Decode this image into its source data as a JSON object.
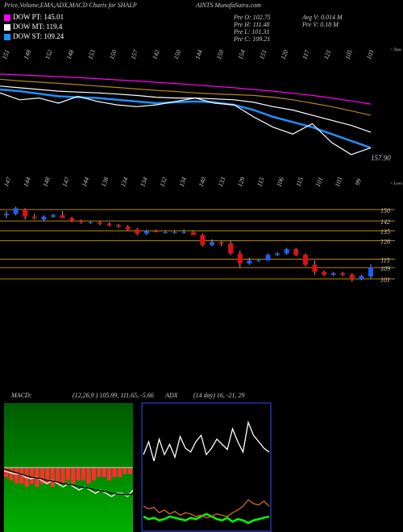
{
  "chart_data": [
    {
      "type": "line",
      "title": "Price,Volume,EMA,ADX,MACD Charts for SHALP",
      "subtitle": "AINTS MunafaSutra.com",
      "stats": [
        "Pre  O: 102.75",
        "Pre  H: 111.48",
        "Pre  L: 101.31",
        "Pre  C: 109.21",
        "Avg V: 0.014  M",
        "Pre  V: 0.18 M"
      ],
      "top_labels": [
        "151",
        "148",
        "152",
        "148",
        "153",
        "150",
        "157",
        "142",
        "150",
        "144",
        "150",
        "154",
        "151",
        "120",
        "117",
        "121",
        "105",
        "103"
      ],
      "top_note": "< Tops",
      "annotation": "157.90",
      "ylim": [
        90,
        170
      ],
      "series": [
        {
          "color": "#ff00ff",
          "name": "DOW PT: 145.01",
          "values": [
            155,
            154.5,
            154,
            153.5,
            153,
            152.3,
            151.6,
            151,
            150.2,
            149.5,
            148.7,
            147.8,
            147,
            146,
            145,
            143.8,
            142.5,
            141,
            139.3,
            137.5
          ]
        },
        {
          "color": "#b8860b",
          "values": [
            152,
            151,
            150.3,
            149.6,
            148.8,
            148,
            147.2,
            146.3,
            145.5,
            144.8,
            144,
            143.4,
            143,
            142.5,
            141.5,
            140,
            138,
            136,
            133.5,
            131
          ]
        },
        {
          "color": "#ffffff",
          "name": "DOW MT: 119.4",
          "values": [
            148,
            147,
            146,
            145,
            144.5,
            144,
            143.3,
            142.5,
            141.5,
            141,
            141,
            140.5,
            140,
            138.5,
            136,
            134,
            131,
            128,
            125,
            121
          ]
        },
        {
          "color": "#1e90ff",
          "name": "DOW ST: 109.24",
          "values": [
            146,
            145,
            143.5,
            142,
            141.5,
            141,
            140,
            139,
            138,
            138.5,
            139,
            138.5,
            137,
            134,
            130,
            127,
            124,
            120,
            116,
            112
          ]
        },
        {
          "color": "#ffffff",
          "values": [
            144,
            140,
            141,
            138,
            142,
            139,
            137,
            136,
            137,
            139,
            141,
            138,
            137,
            130,
            124,
            120,
            126,
            115,
            108,
            112
          ]
        }
      ]
    },
    {
      "type": "candlestick",
      "bottom_labels": [
        "147",
        "144",
        "148",
        "147",
        "144",
        "138",
        "134",
        "134",
        "132",
        "134",
        "140",
        "133",
        "129",
        "115",
        "106",
        "115",
        "101",
        "103",
        "99"
      ],
      "bottom_note": "< Lows",
      "ylim": [
        96,
        156
      ],
      "yticks": [
        101,
        109,
        115,
        128,
        135,
        142,
        150
      ],
      "grid_color": "#b8860b",
      "up_color": "#1e5eff",
      "down_color": "#e01010",
      "open": [
        146,
        147,
        150,
        145,
        143,
        145,
        146,
        144,
        142,
        141,
        141,
        140,
        139,
        138,
        136,
        133,
        135,
        134,
        134,
        134,
        134,
        132,
        125,
        127,
        126,
        119,
        112,
        114,
        114,
        118,
        119,
        122,
        118,
        111,
        106,
        104,
        105,
        104,
        101,
        102.75
      ],
      "high": [
        149,
        152,
        151,
        147,
        146,
        147,
        149,
        145,
        143,
        142,
        142,
        141,
        140,
        139,
        137,
        136,
        136,
        135,
        135,
        136,
        135,
        133,
        129,
        128,
        128,
        121,
        116,
        115,
        119,
        120,
        123,
        123,
        119,
        114,
        107,
        106,
        106,
        105,
        104,
        111.48
      ],
      "low": [
        144,
        146,
        143,
        143,
        142,
        144,
        144,
        141,
        140,
        140,
        139,
        138,
        137,
        135,
        132,
        132,
        134,
        133,
        133,
        133,
        132,
        124,
        124,
        124,
        118,
        109,
        111,
        113,
        114,
        117,
        118,
        117,
        110,
        104,
        103,
        103,
        103,
        99,
        100,
        101.31
      ],
      "close": [
        147,
        151,
        145,
        144,
        145,
        146,
        144,
        142,
        141,
        141,
        140,
        139,
        138,
        136,
        133,
        135,
        134,
        134,
        134,
        134,
        132,
        125,
        127,
        126,
        119,
        112,
        114,
        114,
        118,
        119,
        122,
        118,
        111,
        106,
        104,
        105,
        104,
        101,
        103,
        109.21
      ]
    },
    {
      "type": "macd",
      "title": "MACD:",
      "subtitle": "(12,26,9 ) 105.99, 111.65, -5.66",
      "ylim": [
        -20,
        20
      ],
      "values": [
        -3,
        -4,
        -5,
        -5,
        -6,
        -5,
        -6,
        -5,
        -5,
        -6,
        -5,
        -5,
        -4,
        -5,
        -4,
        -4,
        -5,
        -4,
        -3,
        -3,
        -4,
        -3,
        -3,
        -2,
        -2
      ],
      "color": "#ff3030",
      "series": [
        {
          "color": "#ffffff",
          "values": [
            -1,
            -1.5,
            -2,
            -2,
            -3,
            -3.5,
            -3,
            -4,
            -5,
            -4,
            -5,
            -6,
            -5,
            -6,
            -7,
            -6,
            -7,
            -8,
            -7,
            -8,
            -9,
            -8,
            -8,
            -9,
            -7
          ]
        },
        {
          "color": "#000000",
          "values": [
            -0.5,
            -1,
            -1.5,
            -2,
            -2.5,
            -3,
            -3.2,
            -3.5,
            -4,
            -4.2,
            -4.5,
            -5,
            -5.2,
            -5.5,
            -6,
            -6.2,
            -6.5,
            -7,
            -7.2,
            -7.5,
            -8,
            -8.2,
            -8.3,
            -8.5,
            -8.2
          ]
        }
      ]
    },
    {
      "type": "adx",
      "title": "ADX",
      "subtitle": "(14 day) 16, -21, 29",
      "ylim": [
        0,
        100
      ],
      "series": [
        {
          "color": "#ffffff",
          "values": [
            60,
            70,
            55,
            72,
            60,
            68,
            58,
            74,
            65,
            62,
            70,
            75,
            60,
            65,
            72,
            68,
            64,
            80,
            70,
            62,
            85,
            75,
            70,
            65,
            62
          ]
        },
        {
          "color": "#00ff00",
          "values": [
            12,
            10,
            11,
            9,
            10,
            12,
            11,
            10,
            9,
            11,
            10,
            12,
            14,
            12,
            10,
            9,
            11,
            8,
            10,
            9,
            7,
            9,
            10,
            11,
            12
          ]
        },
        {
          "color": "#d2691e",
          "values": [
            20,
            18,
            19,
            15,
            17,
            14,
            16,
            13,
            15,
            14,
            12,
            13,
            11,
            12,
            14,
            13,
            12,
            15,
            17,
            20,
            25,
            22,
            21,
            24,
            20
          ]
        }
      ]
    }
  ]
}
